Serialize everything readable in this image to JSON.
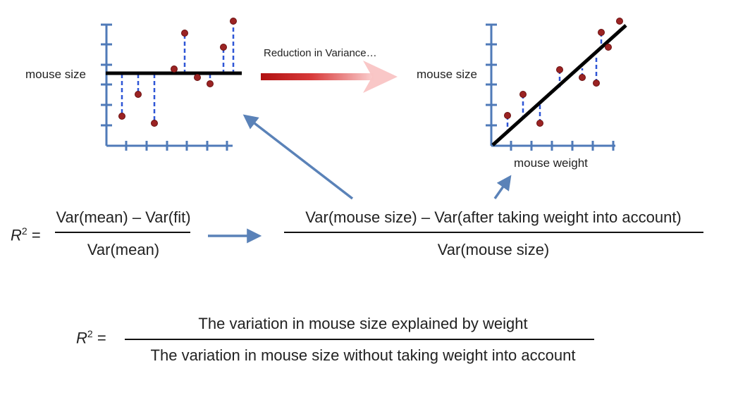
{
  "left_plot": {
    "y_label": "mouse size"
  },
  "right_plot": {
    "y_label": "mouse size",
    "x_label": "mouse weight"
  },
  "transition": {
    "label": "Reduction in Variance…"
  },
  "formula1": {
    "lhs_base": "R",
    "lhs_exp": "2",
    "lhs_eq": "=",
    "numerator": "Var(mean) – Var(fit)",
    "denominator": "Var(mean)"
  },
  "formula2": {
    "numerator": "Var(mouse size) – Var(after taking weight into account)",
    "denominator": "Var(mouse size)"
  },
  "formula3": {
    "lhs_base": "R",
    "lhs_exp": "2",
    "lhs_eq": "=",
    "numerator": "The variation in mouse size explained by weight",
    "denominator": "The variation in mouse size without taking weight into account"
  },
  "colors": {
    "axis": "#4f7ab8",
    "point": "#9b2323",
    "residual": "#2f56d6",
    "fit_line": "#000000",
    "arrow_blue": "#5a82b8",
    "arrow_red_start": "#b01010",
    "arrow_red_end": "#f7b8b8"
  }
}
